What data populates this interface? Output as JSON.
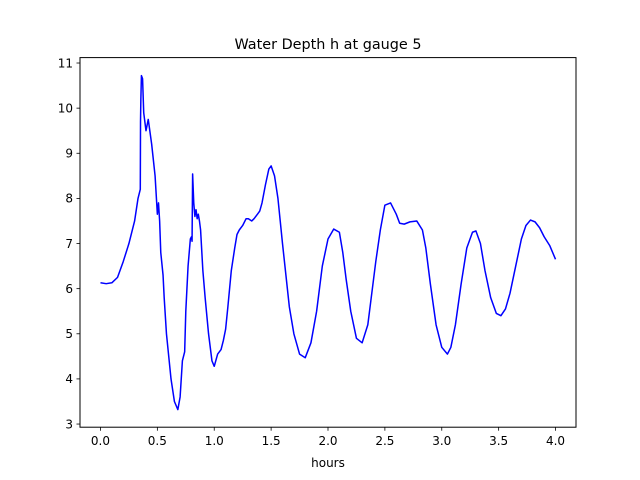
{
  "chart_data": {
    "type": "line",
    "title": "Water Depth h at gauge 5",
    "xlabel": "hours",
    "ylabel": "",
    "xlim": [
      -0.18,
      4.18
    ],
    "ylim": [
      2.93,
      11.12
    ],
    "grid": false,
    "xticks": [
      0.0,
      0.5,
      1.0,
      1.5,
      2.0,
      2.5,
      3.0,
      3.5,
      4.0
    ],
    "xtick_labels": [
      "0.0",
      "0.5",
      "1.0",
      "1.5",
      "2.0",
      "2.5",
      "3.0",
      "3.5",
      "4.0"
    ],
    "yticks": [
      3,
      4,
      5,
      6,
      7,
      8,
      9,
      10,
      11
    ],
    "ytick_labels": [
      "3",
      "4",
      "5",
      "6",
      "7",
      "8",
      "9",
      "10",
      "11"
    ],
    "series": [
      {
        "color": "#0000ff",
        "x": [
          0.0,
          0.05,
          0.1,
          0.15,
          0.2,
          0.25,
          0.3,
          0.33,
          0.35,
          0.352,
          0.355,
          0.36,
          0.37,
          0.38,
          0.4,
          0.42,
          0.45,
          0.48,
          0.5,
          0.51,
          0.52,
          0.53,
          0.55,
          0.56,
          0.58,
          0.6,
          0.62,
          0.65,
          0.68,
          0.7,
          0.72,
          0.74,
          0.75,
          0.77,
          0.78,
          0.79,
          0.8,
          0.805,
          0.81,
          0.82,
          0.83,
          0.84,
          0.85,
          0.86,
          0.87,
          0.88,
          0.9,
          0.92,
          0.95,
          0.98,
          1.0,
          1.03,
          1.06,
          1.08,
          1.1,
          1.12,
          1.15,
          1.18,
          1.2,
          1.22,
          1.25,
          1.28,
          1.3,
          1.33,
          1.35,
          1.38,
          1.4,
          1.42,
          1.45,
          1.48,
          1.5,
          1.53,
          1.56,
          1.58,
          1.6,
          1.63,
          1.66,
          1.7,
          1.75,
          1.8,
          1.85,
          1.9,
          1.95,
          2.0,
          2.05,
          2.1,
          2.13,
          2.16,
          2.2,
          2.25,
          2.3,
          2.35,
          2.38,
          2.42,
          2.46,
          2.5,
          2.55,
          2.6,
          2.63,
          2.67,
          2.72,
          2.78,
          2.83,
          2.86,
          2.9,
          2.95,
          3.0,
          3.05,
          3.08,
          3.12,
          3.17,
          3.22,
          3.27,
          3.3,
          3.34,
          3.38,
          3.43,
          3.48,
          3.52,
          3.56,
          3.6,
          3.65,
          3.7,
          3.74,
          3.78,
          3.82,
          3.86,
          3.9,
          3.95,
          4.0
        ],
        "y": [
          6.13,
          6.11,
          6.13,
          6.25,
          6.6,
          7.0,
          7.5,
          8.0,
          8.2,
          9.7,
          10.2,
          10.72,
          10.65,
          9.9,
          9.5,
          9.75,
          9.2,
          8.5,
          7.65,
          7.9,
          7.5,
          6.8,
          6.3,
          5.8,
          5.0,
          4.5,
          4.0,
          3.5,
          3.32,
          3.6,
          4.4,
          4.6,
          5.5,
          6.5,
          6.8,
          7.1,
          7.15,
          7.05,
          8.54,
          7.9,
          7.6,
          7.75,
          7.55,
          7.65,
          7.5,
          7.3,
          6.4,
          5.8,
          5.0,
          4.4,
          4.28,
          4.55,
          4.65,
          4.85,
          5.1,
          5.6,
          6.4,
          6.9,
          7.2,
          7.3,
          7.4,
          7.55,
          7.55,
          7.5,
          7.55,
          7.65,
          7.72,
          7.9,
          8.3,
          8.65,
          8.72,
          8.5,
          8.0,
          7.5,
          7.0,
          6.3,
          5.6,
          5.0,
          4.55,
          4.47,
          4.8,
          5.5,
          6.5,
          7.1,
          7.32,
          7.25,
          6.8,
          6.2,
          5.5,
          4.9,
          4.8,
          5.2,
          5.8,
          6.6,
          7.3,
          7.85,
          7.9,
          7.65,
          7.45,
          7.43,
          7.48,
          7.5,
          7.3,
          6.9,
          6.1,
          5.2,
          4.7,
          4.55,
          4.7,
          5.2,
          6.1,
          6.9,
          7.25,
          7.28,
          7.0,
          6.4,
          5.8,
          5.45,
          5.4,
          5.55,
          5.9,
          6.5,
          7.1,
          7.4,
          7.52,
          7.48,
          7.35,
          7.15,
          6.95,
          6.65
        ]
      }
    ]
  }
}
